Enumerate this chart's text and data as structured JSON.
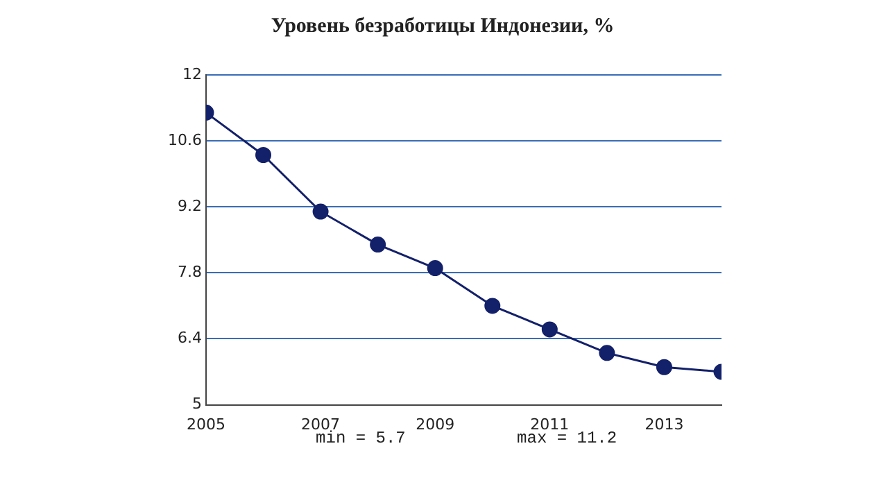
{
  "chart_data": {
    "type": "line",
    "title": "Уровень безработицы Индонезии, %",
    "x": [
      2005,
      2006,
      2007,
      2008,
      2009,
      2010,
      2011,
      2012,
      2013,
      2014
    ],
    "series": [
      {
        "color": "#13206a",
        "values": [
          11.2,
          10.3,
          9.1,
          8.4,
          7.9,
          7.1,
          6.6,
          6.1,
          5.8,
          5.7
        ]
      }
    ],
    "xlim": [
      2005,
      2014
    ],
    "xticks": [
      2005,
      2007,
      2009,
      2011,
      2013
    ],
    "ylim": [
      5,
      12
    ],
    "yticks": [
      5,
      6.4,
      7.8,
      9.2,
      10.6,
      12
    ],
    "grid": "y",
    "marker": "circle",
    "line_style": "solid",
    "annotations": [
      "min = 5.7",
      "max = 11.2"
    ]
  }
}
